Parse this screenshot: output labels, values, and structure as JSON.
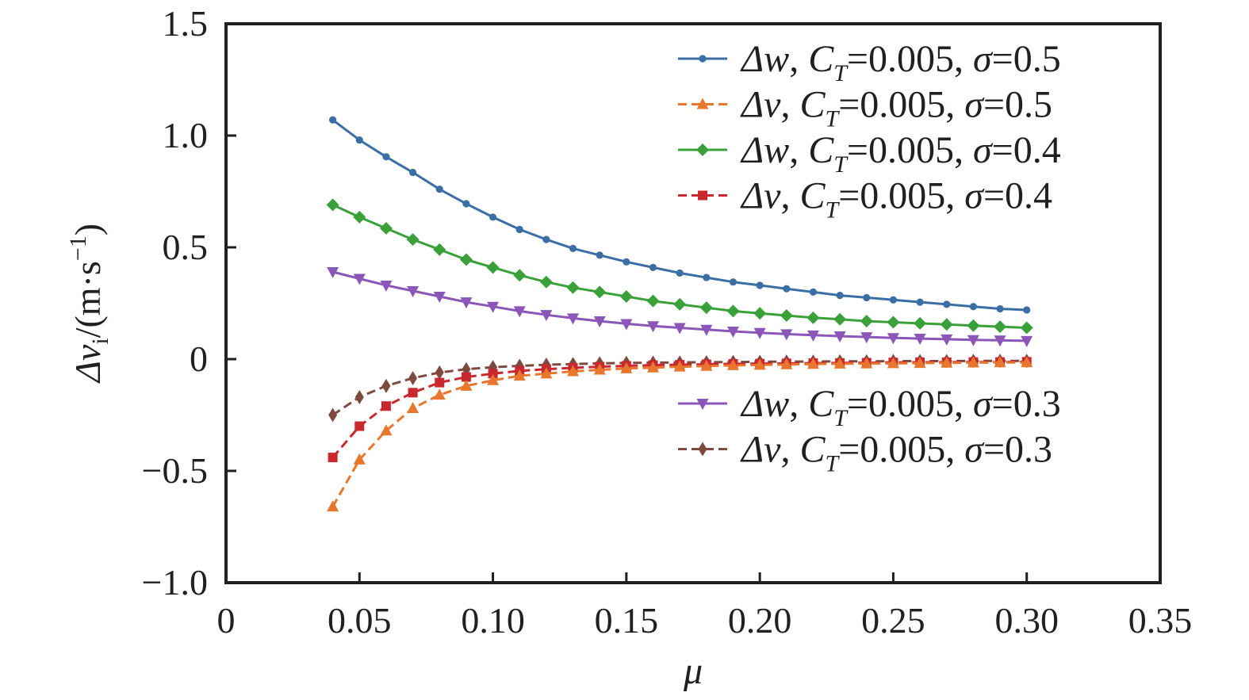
{
  "chart_data": {
    "type": "line",
    "xlabel": "μ",
    "ylabel": {
      "prefix": "Δv",
      "subscript": "i",
      "unit_open": "/(m·s",
      "unit_exp": "−1",
      "unit_close": ")"
    },
    "xlim": [
      0,
      0.35
    ],
    "ylim": [
      -1.0,
      1.5
    ],
    "x_ticks": [
      {
        "value": 0,
        "label": "0"
      },
      {
        "value": 0.05,
        "label": "0.05"
      },
      {
        "value": 0.1,
        "label": "0.10"
      },
      {
        "value": 0.15,
        "label": "0.15"
      },
      {
        "value": 0.2,
        "label": "0.20"
      },
      {
        "value": 0.25,
        "label": "0.25"
      },
      {
        "value": 0.3,
        "label": "0.30"
      },
      {
        "value": 0.35,
        "label": "0.35"
      }
    ],
    "y_ticks": [
      {
        "value": -1.0,
        "label": "−1.0"
      },
      {
        "value": -0.5,
        "label": "−0.5"
      },
      {
        "value": 0,
        "label": "0"
      },
      {
        "value": 0.5,
        "label": "0.5"
      },
      {
        "value": 1.0,
        "label": "1.0"
      },
      {
        "value": 1.5,
        "label": "1.5"
      }
    ],
    "grid": false,
    "legend_groups": [
      {
        "placement": "top-right",
        "series": [
          0,
          1,
          2,
          3
        ]
      },
      {
        "placement": "center-right",
        "series": [
          4,
          5
        ]
      }
    ],
    "x": [
      0.04,
      0.05,
      0.06,
      0.07,
      0.08,
      0.09,
      0.1,
      0.11,
      0.12,
      0.13,
      0.14,
      0.15,
      0.16,
      0.17,
      0.18,
      0.19,
      0.2,
      0.21,
      0.22,
      0.23,
      0.24,
      0.25,
      0.26,
      0.27,
      0.28,
      0.29,
      0.3
    ],
    "series": [
      {
        "id": "dw-sigma-0-5",
        "name": {
          "sym": "Δw",
          "rest": "=0.005, ",
          "sigma": "σ",
          "sval": "=0.5"
        },
        "color": "#3a6ea5",
        "marker": "circle",
        "dash": false,
        "values": [
          1.07,
          0.98,
          0.905,
          0.835,
          0.76,
          0.695,
          0.635,
          0.58,
          0.535,
          0.495,
          0.465,
          0.435,
          0.41,
          0.385,
          0.365,
          0.345,
          0.33,
          0.315,
          0.3,
          0.285,
          0.275,
          0.265,
          0.255,
          0.245,
          0.235,
          0.225,
          0.22
        ]
      },
      {
        "id": "dv-sigma-0-5",
        "name": {
          "sym": "Δv",
          "rest": "=0.005, ",
          "sigma": "σ",
          "sval": "=0.5"
        },
        "color": "#e8762d",
        "marker": "triangle-up",
        "dash": true,
        "values": [
          -0.66,
          -0.45,
          -0.32,
          -0.22,
          -0.16,
          -0.12,
          -0.095,
          -0.075,
          -0.065,
          -0.055,
          -0.048,
          -0.042,
          -0.038,
          -0.034,
          -0.031,
          -0.028,
          -0.026,
          -0.024,
          -0.022,
          -0.021,
          -0.02,
          -0.019,
          -0.018,
          -0.017,
          -0.016,
          -0.015,
          -0.015
        ]
      },
      {
        "id": "dw-sigma-0-4",
        "name": {
          "sym": "Δw",
          "rest": "=0.005, ",
          "sigma": "σ",
          "sval": "=0.4"
        },
        "color": "#3aa13a",
        "marker": "diamond",
        "dash": false,
        "values": [
          0.69,
          0.635,
          0.585,
          0.535,
          0.49,
          0.445,
          0.41,
          0.375,
          0.345,
          0.32,
          0.3,
          0.28,
          0.26,
          0.245,
          0.23,
          0.215,
          0.205,
          0.195,
          0.185,
          0.178,
          0.17,
          0.165,
          0.16,
          0.155,
          0.15,
          0.145,
          0.14
        ]
      },
      {
        "id": "dv-sigma-0-4",
        "name": {
          "sym": "Δv",
          "rest": "=0.005, ",
          "sigma": "σ",
          "sval": "=0.4"
        },
        "color": "#c8282e",
        "marker": "square",
        "dash": true,
        "values": [
          -0.44,
          -0.3,
          -0.21,
          -0.15,
          -0.105,
          -0.08,
          -0.065,
          -0.053,
          -0.045,
          -0.039,
          -0.034,
          -0.03,
          -0.027,
          -0.025,
          -0.023,
          -0.021,
          -0.02,
          -0.019,
          -0.018,
          -0.017,
          -0.016,
          -0.015,
          -0.014,
          -0.014,
          -0.013,
          -0.013,
          -0.012
        ]
      },
      {
        "id": "dw-sigma-0-3",
        "name": {
          "sym": "Δw",
          "rest": "=0.005, ",
          "sigma": "σ",
          "sval": "=0.3"
        },
        "color": "#8a56b8",
        "marker": "triangle-down",
        "dash": false,
        "values": [
          0.39,
          0.36,
          0.33,
          0.305,
          0.28,
          0.255,
          0.235,
          0.215,
          0.198,
          0.183,
          0.17,
          0.158,
          0.148,
          0.14,
          0.132,
          0.124,
          0.118,
          0.112,
          0.107,
          0.103,
          0.099,
          0.095,
          0.092,
          0.089,
          0.086,
          0.084,
          0.082
        ]
      },
      {
        "id": "dv-sigma-0-3",
        "name": {
          "sym": "Δv",
          "rest": "=0.005, ",
          "sigma": "σ",
          "sval": "=0.3"
        },
        "color": "#7e4a3f",
        "marker": "thin-diamond",
        "dash": true,
        "values": [
          -0.25,
          -0.17,
          -0.12,
          -0.085,
          -0.06,
          -0.045,
          -0.036,
          -0.03,
          -0.025,
          -0.022,
          -0.019,
          -0.017,
          -0.016,
          -0.015,
          -0.014,
          -0.013,
          -0.012,
          -0.011,
          -0.011,
          -0.01,
          -0.01,
          -0.009,
          -0.009,
          -0.009,
          -0.008,
          -0.008,
          -0.008
        ]
      }
    ]
  }
}
